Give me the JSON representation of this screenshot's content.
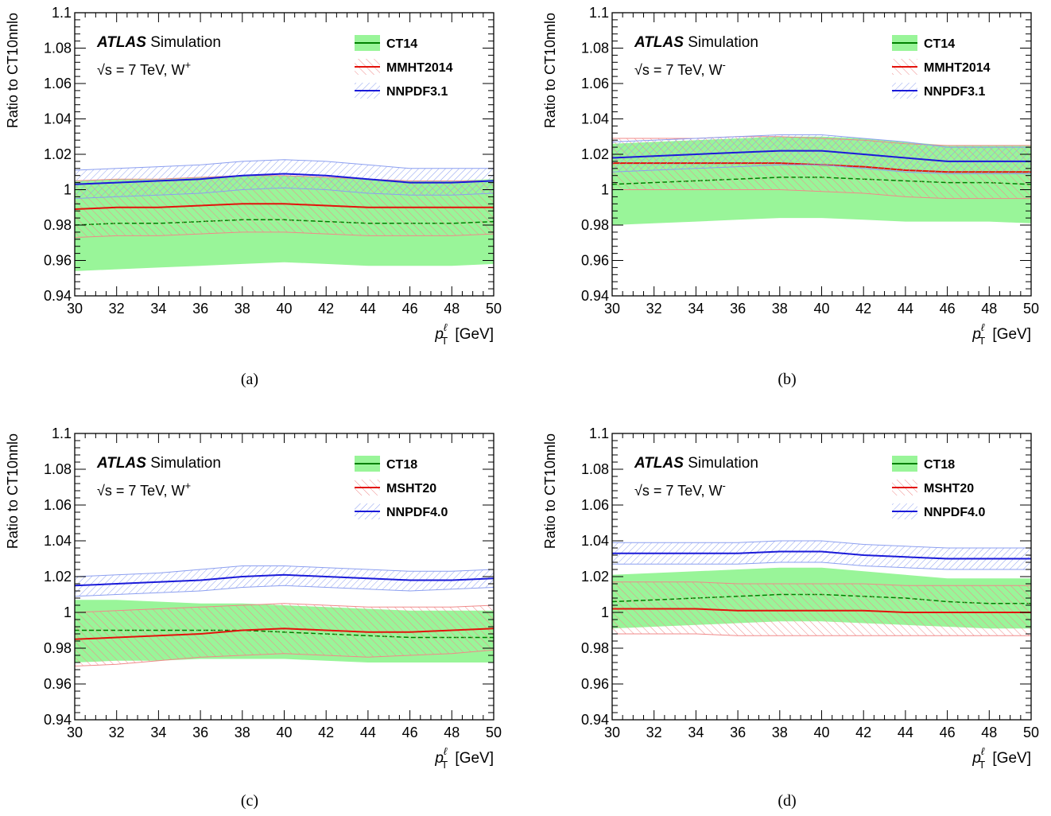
{
  "colors": {
    "ct_fill": "#99f599",
    "ct_line": "#008000",
    "mmht_line": "#e3120b",
    "mmht_hatch": "#f08a8a",
    "nnpdf_line": "#1a1ad9",
    "nnpdf_hatch": "#8c9ff0"
  },
  "chart_data": [
    {
      "type": "line",
      "caption": "(a)",
      "ylabel": "Ratio to CT10nnlo",
      "xlabel_main": "p",
      "xlabel_sup": "ℓ",
      "xlabel_sub": "T",
      "xlabel_unit": "[GeV]",
      "xlim": [
        30,
        50
      ],
      "ylim": [
        0.94,
        1.1
      ],
      "xticks": [
        "30",
        "32",
        "34",
        "36",
        "38",
        "40",
        "42",
        "44",
        "46",
        "48",
        "50"
      ],
      "yticks": [
        "0.94",
        "0.96",
        "0.98",
        "1",
        "1.02",
        "1.04",
        "1.06",
        "1.08",
        "1.1"
      ],
      "atlas_label": "ATLAS",
      "atlas_suffix": "Simulation",
      "energy_label": "√s = 7 TeV, W",
      "charge_label": "+",
      "legend": [
        "CT14",
        "MMHT2014",
        "NNPDF3.1"
      ],
      "x": [
        30,
        32,
        34,
        36,
        38,
        40,
        42,
        44,
        46,
        48,
        50
      ],
      "series": [
        {
          "name": "CT14",
          "style": "solid",
          "central": [
            0.98,
            0.981,
            0.981,
            0.982,
            0.983,
            0.983,
            0.982,
            0.981,
            0.981,
            0.981,
            0.982
          ],
          "lower": [
            0.954,
            0.955,
            0.956,
            0.957,
            0.958,
            0.959,
            0.958,
            0.957,
            0.957,
            0.957,
            0.958
          ],
          "upper": [
            1.005,
            1.006,
            1.006,
            1.007,
            1.008,
            1.008,
            1.007,
            1.006,
            1.005,
            1.005,
            1.006
          ]
        },
        {
          "name": "MMHT2014",
          "style": "hatch",
          "central": [
            0.989,
            0.99,
            0.99,
            0.991,
            0.992,
            0.992,
            0.991,
            0.99,
            0.99,
            0.99,
            0.99
          ],
          "lower": [
            0.973,
            0.974,
            0.974,
            0.975,
            0.976,
            0.976,
            0.975,
            0.974,
            0.974,
            0.974,
            0.975
          ],
          "upper": [
            1.005,
            1.006,
            1.006,
            1.007,
            1.008,
            1.008,
            1.007,
            1.006,
            1.005,
            1.005,
            1.005
          ]
        },
        {
          "name": "NNPDF3.1",
          "style": "hatch",
          "central": [
            1.003,
            1.004,
            1.005,
            1.006,
            1.008,
            1.009,
            1.008,
            1.006,
            1.004,
            1.004,
            1.005
          ],
          "lower": [
            0.995,
            0.996,
            0.997,
            0.998,
            1.0,
            1.001,
            1.0,
            0.998,
            0.997,
            0.997,
            0.998
          ],
          "upper": [
            1.011,
            1.012,
            1.013,
            1.014,
            1.016,
            1.017,
            1.016,
            1.014,
            1.012,
            1.012,
            1.012
          ]
        }
      ]
    },
    {
      "type": "line",
      "caption": "(b)",
      "ylabel": "Ratio to CT10nnlo",
      "xlabel_main": "p",
      "xlabel_sup": "ℓ",
      "xlabel_sub": "T",
      "xlabel_unit": "[GeV]",
      "xlim": [
        30,
        50
      ],
      "ylim": [
        0.94,
        1.1
      ],
      "xticks": [
        "30",
        "32",
        "34",
        "36",
        "38",
        "40",
        "42",
        "44",
        "46",
        "48",
        "50"
      ],
      "yticks": [
        "0.94",
        "0.96",
        "0.98",
        "1",
        "1.02",
        "1.04",
        "1.06",
        "1.08",
        "1.1"
      ],
      "atlas_label": "ATLAS",
      "atlas_suffix": "Simulation",
      "energy_label": "√s = 7 TeV, W",
      "charge_label": "-",
      "legend": [
        "CT14",
        "MMHT2014",
        "NNPDF3.1"
      ],
      "x": [
        30,
        32,
        34,
        36,
        38,
        40,
        42,
        44,
        46,
        48,
        50
      ],
      "series": [
        {
          "name": "CT14",
          "style": "solid",
          "central": [
            1.003,
            1.004,
            1.005,
            1.006,
            1.007,
            1.007,
            1.006,
            1.005,
            1.004,
            1.004,
            1.003
          ],
          "lower": [
            0.98,
            0.981,
            0.982,
            0.983,
            0.984,
            0.984,
            0.983,
            0.982,
            0.982,
            0.982,
            0.981
          ],
          "upper": [
            1.026,
            1.027,
            1.028,
            1.029,
            1.03,
            1.03,
            1.029,
            1.027,
            1.025,
            1.025,
            1.025
          ]
        },
        {
          "name": "MMHT2014",
          "style": "hatch",
          "central": [
            1.015,
            1.015,
            1.015,
            1.015,
            1.015,
            1.014,
            1.013,
            1.011,
            1.01,
            1.01,
            1.01
          ],
          "lower": [
            1.0,
            1.0,
            1.0,
            1.0,
            1.0,
            0.999,
            0.998,
            0.996,
            0.995,
            0.995,
            0.995
          ],
          "upper": [
            1.029,
            1.029,
            1.029,
            1.03,
            1.03,
            1.029,
            1.028,
            1.026,
            1.025,
            1.025,
            1.025
          ]
        },
        {
          "name": "NNPDF3.1",
          "style": "hatch",
          "central": [
            1.018,
            1.019,
            1.02,
            1.021,
            1.022,
            1.022,
            1.02,
            1.018,
            1.016,
            1.016,
            1.016
          ],
          "lower": [
            1.01,
            1.011,
            1.012,
            1.013,
            1.014,
            1.014,
            1.012,
            1.01,
            1.009,
            1.009,
            1.009
          ],
          "upper": [
            1.027,
            1.028,
            1.029,
            1.03,
            1.031,
            1.031,
            1.029,
            1.027,
            1.024,
            1.024,
            1.024
          ]
        }
      ]
    },
    {
      "type": "line",
      "caption": "(c)",
      "ylabel": "Ratio to CT10nnlo",
      "xlabel_main": "p",
      "xlabel_sup": "ℓ",
      "xlabel_sub": "T",
      "xlabel_unit": "[GeV]",
      "xlim": [
        30,
        50
      ],
      "ylim": [
        0.94,
        1.1
      ],
      "xticks": [
        "30",
        "32",
        "34",
        "36",
        "38",
        "40",
        "42",
        "44",
        "46",
        "48",
        "50"
      ],
      "yticks": [
        "0.94",
        "0.96",
        "0.98",
        "1",
        "1.02",
        "1.04",
        "1.06",
        "1.08",
        "1.1"
      ],
      "atlas_label": "ATLAS",
      "atlas_suffix": "Simulation",
      "energy_label": "√s = 7 TeV, W",
      "charge_label": "+",
      "legend": [
        "CT18",
        "MSHT20",
        "NNPDF4.0"
      ],
      "x": [
        30,
        32,
        34,
        36,
        38,
        40,
        42,
        44,
        46,
        48,
        50
      ],
      "series": [
        {
          "name": "CT18",
          "style": "solid",
          "central": [
            0.99,
            0.99,
            0.99,
            0.99,
            0.99,
            0.989,
            0.988,
            0.987,
            0.986,
            0.986,
            0.986
          ],
          "lower": [
            0.972,
            0.973,
            0.973,
            0.974,
            0.974,
            0.974,
            0.973,
            0.972,
            0.972,
            0.972,
            0.972
          ],
          "upper": [
            1.007,
            1.007,
            1.006,
            1.005,
            1.005,
            1.004,
            1.003,
            1.002,
            1.001,
            1.001,
            1.001
          ]
        },
        {
          "name": "MSHT20",
          "style": "hatch",
          "central": [
            0.985,
            0.986,
            0.987,
            0.988,
            0.99,
            0.991,
            0.99,
            0.989,
            0.989,
            0.99,
            0.991
          ],
          "lower": [
            0.97,
            0.971,
            0.973,
            0.975,
            0.976,
            0.977,
            0.976,
            0.975,
            0.976,
            0.977,
            0.979
          ],
          "upper": [
            1.0,
            1.001,
            1.002,
            1.003,
            1.004,
            1.005,
            1.004,
            1.003,
            1.003,
            1.003,
            1.004
          ]
        },
        {
          "name": "NNPDF4.0",
          "style": "hatch",
          "central": [
            1.015,
            1.016,
            1.017,
            1.018,
            1.02,
            1.021,
            1.02,
            1.019,
            1.018,
            1.018,
            1.019
          ],
          "lower": [
            1.009,
            1.01,
            1.011,
            1.012,
            1.014,
            1.015,
            1.014,
            1.013,
            1.012,
            1.013,
            1.014
          ],
          "upper": [
            1.02,
            1.021,
            1.022,
            1.024,
            1.026,
            1.026,
            1.025,
            1.024,
            1.023,
            1.023,
            1.024
          ]
        }
      ]
    },
    {
      "type": "line",
      "caption": "(d)",
      "ylabel": "Ratio to CT10nnlo",
      "xlabel_main": "p",
      "xlabel_sup": "ℓ",
      "xlabel_sub": "T",
      "xlabel_unit": "[GeV]",
      "xlim": [
        30,
        50
      ],
      "ylim": [
        0.94,
        1.1
      ],
      "xticks": [
        "30",
        "32",
        "34",
        "36",
        "38",
        "40",
        "42",
        "44",
        "46",
        "48",
        "50"
      ],
      "yticks": [
        "0.94",
        "0.96",
        "0.98",
        "1",
        "1.02",
        "1.04",
        "1.06",
        "1.08",
        "1.1"
      ],
      "atlas_label": "ATLAS",
      "atlas_suffix": "Simulation",
      "energy_label": "√s = 7 TeV, W",
      "charge_label": "-",
      "legend": [
        "CT18",
        "MSHT20",
        "NNPDF4.0"
      ],
      "x": [
        30,
        32,
        34,
        36,
        38,
        40,
        42,
        44,
        46,
        48,
        50
      ],
      "series": [
        {
          "name": "CT18",
          "style": "solid",
          "central": [
            1.006,
            1.007,
            1.008,
            1.009,
            1.01,
            1.01,
            1.009,
            1.008,
            1.006,
            1.005,
            1.005
          ],
          "lower": [
            0.991,
            0.992,
            0.993,
            0.994,
            0.995,
            0.995,
            0.994,
            0.993,
            0.992,
            0.991,
            0.991
          ],
          "upper": [
            1.021,
            1.022,
            1.023,
            1.024,
            1.025,
            1.025,
            1.023,
            1.021,
            1.019,
            1.019,
            1.019
          ]
        },
        {
          "name": "MSHT20",
          "style": "hatch",
          "central": [
            1.002,
            1.002,
            1.002,
            1.001,
            1.001,
            1.001,
            1.001,
            1.0,
            1.0,
            1.0,
            1.0
          ],
          "lower": [
            0.988,
            0.988,
            0.988,
            0.987,
            0.987,
            0.987,
            0.987,
            0.987,
            0.987,
            0.987,
            0.987
          ],
          "upper": [
            1.017,
            1.017,
            1.017,
            1.016,
            1.016,
            1.016,
            1.016,
            1.015,
            1.015,
            1.015,
            1.015
          ]
        },
        {
          "name": "NNPDF4.0",
          "style": "hatch",
          "central": [
            1.033,
            1.033,
            1.033,
            1.033,
            1.034,
            1.034,
            1.032,
            1.031,
            1.03,
            1.03,
            1.03
          ],
          "lower": [
            1.027,
            1.027,
            1.027,
            1.027,
            1.028,
            1.028,
            1.026,
            1.025,
            1.024,
            1.024,
            1.024
          ],
          "upper": [
            1.039,
            1.039,
            1.039,
            1.039,
            1.04,
            1.04,
            1.038,
            1.037,
            1.036,
            1.036,
            1.036
          ]
        }
      ]
    }
  ]
}
